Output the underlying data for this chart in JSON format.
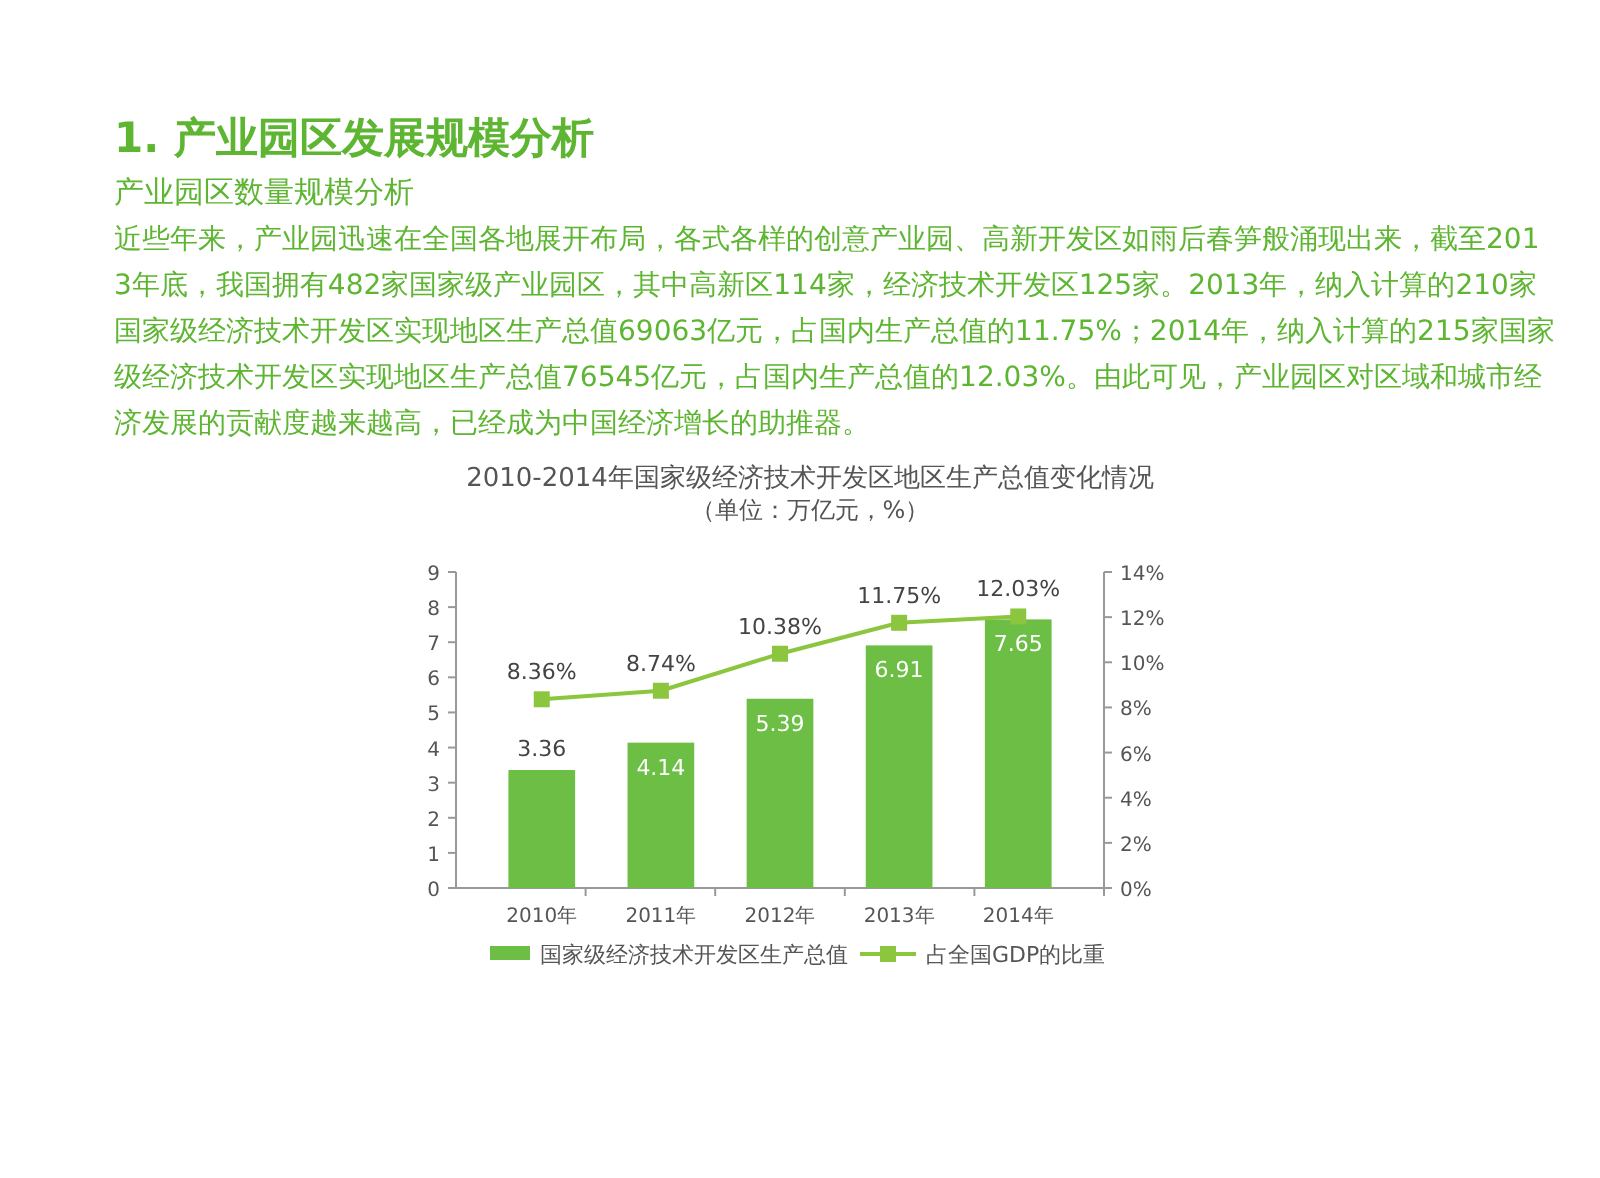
{
  "chart_data": {
    "type": "bar",
    "title": "2010-2014年国家级经济技术开发区地区生产总值变化情况",
    "subtitle": "（单位：万亿元，%）",
    "annotations": [
      "1. 产业园区发展规模分析",
      "产业园区数量规模分析",
      "近些年来，产业园迅速在全国各地展开布局，各式各样的创意产业园、高新开发区如雨后春笋般涌现出来，截至2013年底，我国拥有482家国家级产业园区，其中高新区114家，经济技术开发区125家。2013年，纳入计算的210家国家级经济技术开发区实现地区生产总值69063亿元，占国内生产总值的11.75%；2014年，纳入计算的215家国家级经济技术开发区实现地区生产总值76545亿元，占国内生产总值的12.03%。由此可见，产业园区对区域和城市经济发展的贡献度越来越高，已经成为中国经济增长的助推器。"
    ],
    "categories": [
      "2010年",
      "2011年",
      "2012年",
      "2013年",
      "2014年"
    ],
    "series": [
      {
        "name": "国家级经济技术开发区生产总值",
        "color": "#6cbf44",
        "values": [
          3.36,
          4.14,
          5.39,
          6.91,
          7.65
        ],
        "value_labels": [
          "3.36",
          "4.14",
          "5.39",
          "6.91",
          "7.65"
        ]
      },
      {
        "name": "占全国GDP的比重",
        "type": "line",
        "axis": "y2",
        "color": "#8cc63f",
        "values": [
          8.36,
          8.74,
          10.38,
          11.75,
          12.03
        ],
        "value_labels": [
          "8.36%",
          "8.74%",
          "10.38%",
          "11.75%",
          "12.03%"
        ]
      }
    ],
    "ylim": [
      0,
      9
    ],
    "yticks": [
      0,
      1,
      2,
      3,
      4,
      5,
      6,
      7,
      8,
      9
    ],
    "y2lim": [
      0,
      14
    ],
    "y2ticks": [
      {
        "value": 0,
        "label": "0%"
      },
      {
        "value": 2,
        "label": "2%"
      },
      {
        "value": 4,
        "label": "4%"
      },
      {
        "value": 6,
        "label": "6%"
      },
      {
        "value": 8,
        "label": "8%"
      },
      {
        "value": 10,
        "label": "10%"
      },
      {
        "value": 12,
        "label": "12%"
      },
      {
        "value": 14,
        "label": "14%"
      }
    ],
    "marker": "square",
    "legend": "bottom"
  }
}
